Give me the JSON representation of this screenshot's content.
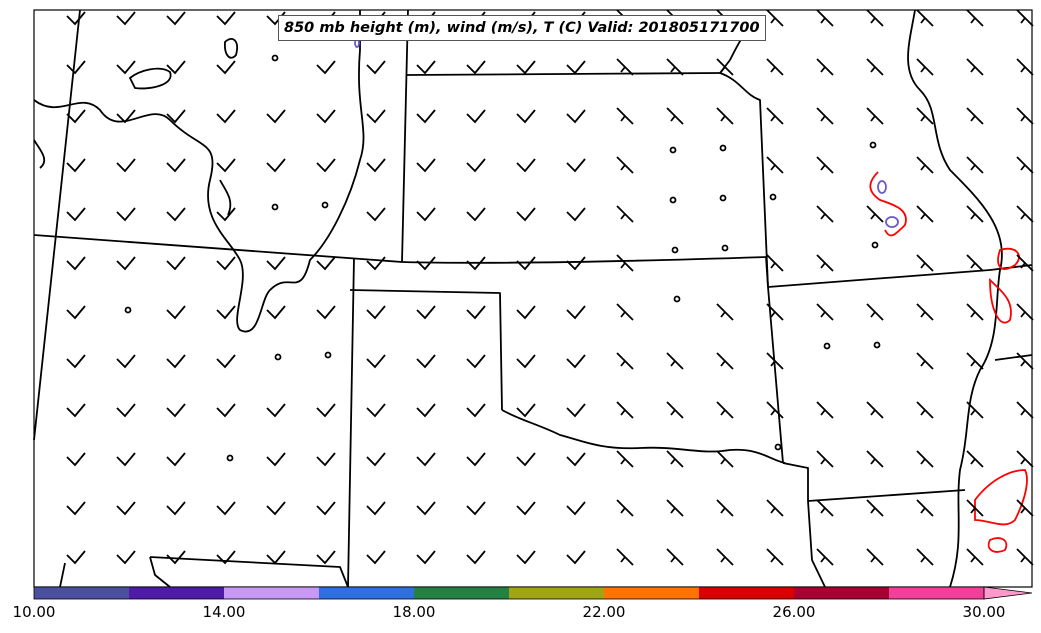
{
  "title": "850 mb height (m), wind (m/s), T (C) Valid: 201805171700",
  "colorbar": {
    "ticks": [
      "10.00",
      "14.00",
      "18.00",
      "22.00",
      "26.00",
      "30.00"
    ],
    "colors": [
      "#4b4fa0",
      "#4e1aa8",
      "#c799f5",
      "#2f70e0",
      "#258043",
      "#9fa514",
      "#ff7300",
      "#d90000",
      "#a80033",
      "#f23f99",
      "#ff99cc"
    ]
  },
  "wind_barb_color": "#000000",
  "calm_marker": "circle",
  "border_color": "#000000",
  "temperature_contour_colors": [
    "#ff0000",
    "#6a5acd"
  ]
}
